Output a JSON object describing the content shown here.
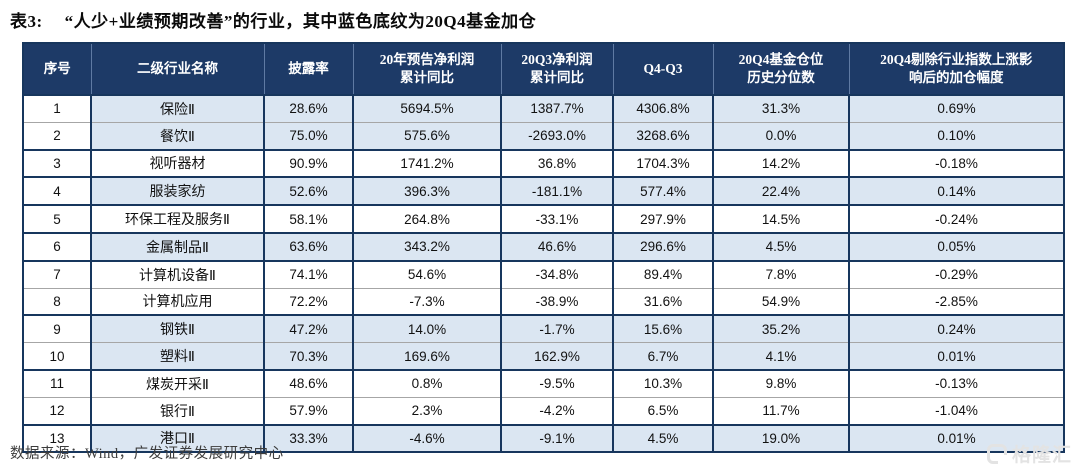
{
  "title": {
    "prefix": "表3:",
    "text": "“人少+业绩预期改善”的行业，其中蓝色底纹为20Q4基金加仓"
  },
  "table": {
    "columns": [
      {
        "key": "idx",
        "label": "序号"
      },
      {
        "key": "name",
        "label": "二级行业名称"
      },
      {
        "key": "disclosure",
        "label": "披露率"
      },
      {
        "key": "forecast_yoy",
        "label": "20年预告净利润\n累计同比"
      },
      {
        "key": "q3_yoy",
        "label": "20Q3净利润\n累计同比"
      },
      {
        "key": "q4_minus_q3",
        "label": "Q4-Q3"
      },
      {
        "key": "fund_percentile",
        "label": "20Q4基金仓位\n历史分位数"
      },
      {
        "key": "add_range",
        "label": "20Q4剔除行业指数上涨影\n响后的加仓幅度"
      }
    ],
    "highlight_meaning": "20Q4基金加仓",
    "rows": [
      {
        "idx": "1",
        "name": "保险Ⅱ",
        "disclosure": "28.6%",
        "forecast_yoy": "5694.5%",
        "q3_yoy": "1387.7%",
        "q4_minus_q3": "4306.8%",
        "fund_percentile": "31.3%",
        "add_range": "0.69%",
        "highlight": true
      },
      {
        "idx": "2",
        "name": "餐饮Ⅱ",
        "disclosure": "75.0%",
        "forecast_yoy": "575.6%",
        "q3_yoy": "-2693.0%",
        "q4_minus_q3": "3268.6%",
        "fund_percentile": "0.0%",
        "add_range": "0.10%",
        "highlight": true
      },
      {
        "idx": "3",
        "name": "视听器材",
        "disclosure": "90.9%",
        "forecast_yoy": "1741.2%",
        "q3_yoy": "36.8%",
        "q4_minus_q3": "1704.3%",
        "fund_percentile": "14.2%",
        "add_range": "-0.18%",
        "highlight": false
      },
      {
        "idx": "4",
        "name": "服装家纺",
        "disclosure": "52.6%",
        "forecast_yoy": "396.3%",
        "q3_yoy": "-181.1%",
        "q4_minus_q3": "577.4%",
        "fund_percentile": "22.4%",
        "add_range": "0.14%",
        "highlight": true
      },
      {
        "idx": "5",
        "name": "环保工程及服务Ⅱ",
        "disclosure": "58.1%",
        "forecast_yoy": "264.8%",
        "q3_yoy": "-33.1%",
        "q4_minus_q3": "297.9%",
        "fund_percentile": "14.5%",
        "add_range": "-0.24%",
        "highlight": false
      },
      {
        "idx": "6",
        "name": "金属制品Ⅱ",
        "disclosure": "63.6%",
        "forecast_yoy": "343.2%",
        "q3_yoy": "46.6%",
        "q4_minus_q3": "296.6%",
        "fund_percentile": "4.5%",
        "add_range": "0.05%",
        "highlight": true
      },
      {
        "idx": "7",
        "name": "计算机设备Ⅱ",
        "disclosure": "74.1%",
        "forecast_yoy": "54.6%",
        "q3_yoy": "-34.8%",
        "q4_minus_q3": "89.4%",
        "fund_percentile": "7.8%",
        "add_range": "-0.29%",
        "highlight": false
      },
      {
        "idx": "8",
        "name": "计算机应用",
        "disclosure": "72.2%",
        "forecast_yoy": "-7.3%",
        "q3_yoy": "-38.9%",
        "q4_minus_q3": "31.6%",
        "fund_percentile": "54.9%",
        "add_range": "-2.85%",
        "highlight": false
      },
      {
        "idx": "9",
        "name": "钢铁Ⅱ",
        "disclosure": "47.2%",
        "forecast_yoy": "14.0%",
        "q3_yoy": "-1.7%",
        "q4_minus_q3": "15.6%",
        "fund_percentile": "35.2%",
        "add_range": "0.24%",
        "highlight": true
      },
      {
        "idx": "10",
        "name": "塑料Ⅱ",
        "disclosure": "70.3%",
        "forecast_yoy": "169.6%",
        "q3_yoy": "162.9%",
        "q4_minus_q3": "6.7%",
        "fund_percentile": "4.1%",
        "add_range": "0.01%",
        "highlight": true
      },
      {
        "idx": "11",
        "name": "煤炭开采Ⅱ",
        "disclosure": "48.6%",
        "forecast_yoy": "0.8%",
        "q3_yoy": "-9.5%",
        "q4_minus_q3": "10.3%",
        "fund_percentile": "9.8%",
        "add_range": "-0.13%",
        "highlight": false
      },
      {
        "idx": "12",
        "name": "银行Ⅱ",
        "disclosure": "57.9%",
        "forecast_yoy": "2.3%",
        "q3_yoy": "-4.2%",
        "q4_minus_q3": "6.5%",
        "fund_percentile": "11.7%",
        "add_range": "-1.04%",
        "highlight": false
      },
      {
        "idx": "13",
        "name": "港口Ⅱ",
        "disclosure": "33.3%",
        "forecast_yoy": "-4.6%",
        "q3_yoy": "-9.1%",
        "q4_minus_q3": "4.5%",
        "fund_percentile": "19.0%",
        "add_range": "0.01%",
        "highlight": true
      }
    ]
  },
  "footer": {
    "source": "数据来源：Wind，广发证券发展研究中心"
  },
  "watermark": {
    "text": "格隆汇"
  },
  "colors": {
    "header_bg": "#1d3a67",
    "row_highlight": "#dbe6f2",
    "border_dark": "#17365d",
    "border_light": "#a6a6a6",
    "header_text": "#ffffff"
  }
}
